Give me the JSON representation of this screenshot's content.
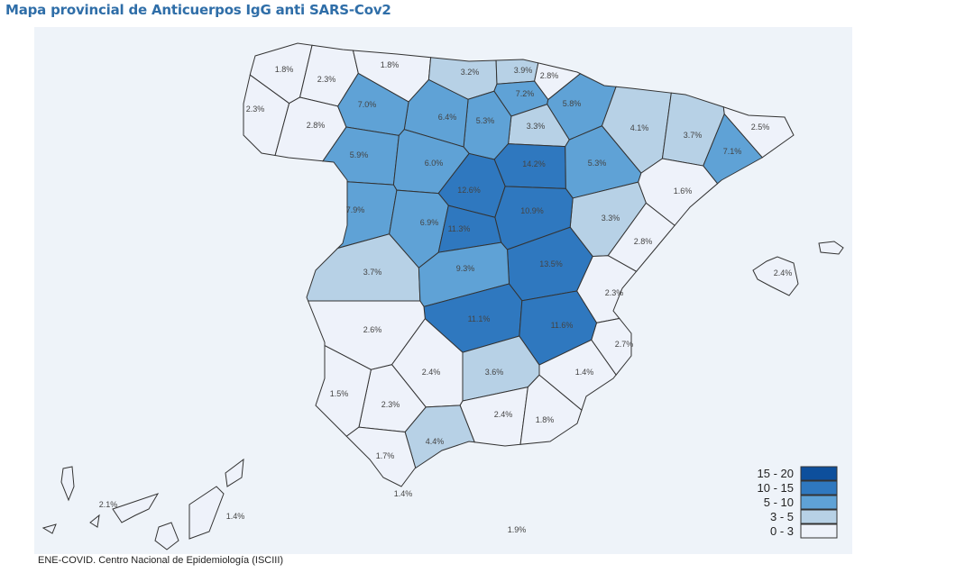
{
  "title": "Mapa provincial de Anticuerpos IgG anti SARS-Cov2",
  "source": "ENE-COVID. Centro Nacional de Epidemiología (ISCIII)",
  "legend": [
    {
      "label": "15 - 20",
      "color": "#0d4f9c"
    },
    {
      "label": "10 - 15",
      "color": "#2f78bf"
    },
    {
      "label": "5 - 10",
      "color": "#5fa2d6"
    },
    {
      "label": "3 - 5",
      "color": "#b7d1e6"
    },
    {
      "label": "0 - 3",
      "color": "#eef2fa"
    }
  ],
  "colors": {
    "background": "#eef3f9",
    "border": "#333333",
    "title": "#2f6ea8"
  },
  "provinces": [
    {
      "value": 1.8,
      "label": "1.8%"
    },
    {
      "value": 2.3,
      "label": "2.3%"
    },
    {
      "value": 2.3,
      "label": "2.3%"
    },
    {
      "value": 2.8,
      "label": "2.8%"
    },
    {
      "value": 1.8,
      "label": "1.8%"
    },
    {
      "value": 3.2,
      "label": "3.2%"
    },
    {
      "value": 3.9,
      "label": "3.9%"
    },
    {
      "value": 2.8,
      "label": "2.8%"
    },
    {
      "value": 7.2,
      "label": "7.2%"
    },
    {
      "value": 5.8,
      "label": "5.8%"
    },
    {
      "value": 3.3,
      "label": "3.3%"
    },
    {
      "value": 5.3,
      "label": "5.3%"
    },
    {
      "value": 6.4,
      "label": "6.4%"
    },
    {
      "value": 7.0,
      "label": "7.0%"
    },
    {
      "value": 5.9,
      "label": "5.9%"
    },
    {
      "value": 6.0,
      "label": "6.0%"
    },
    {
      "value": 14.2,
      "label": "14.2%"
    },
    {
      "value": 4.1,
      "label": "4.1%"
    },
    {
      "value": 3.7,
      "label": "3.7%"
    },
    {
      "value": 2.5,
      "label": "2.5%"
    },
    {
      "value": 7.1,
      "label": "7.1%"
    },
    {
      "value": 5.3,
      "label": "5.3%"
    },
    {
      "value": 1.6,
      "label": "1.6%"
    },
    {
      "value": 3.3,
      "label": "3.3%"
    },
    {
      "value": 2.8,
      "label": "2.8%"
    },
    {
      "value": 2.3,
      "label": "2.3%"
    },
    {
      "value": 2.7,
      "label": "2.7%"
    },
    {
      "value": 12.6,
      "label": "12.6%"
    },
    {
      "value": 10.9,
      "label": "10.9%"
    },
    {
      "value": 7.9,
      "label": "7.9%"
    },
    {
      "value": 6.9,
      "label": "6.9%"
    },
    {
      "value": 11.3,
      "label": "11.3%"
    },
    {
      "value": 13.5,
      "label": "13.5%"
    },
    {
      "value": 3.7,
      "label": "3.7%"
    },
    {
      "value": 9.3,
      "label": "9.3%"
    },
    {
      "value": 11.1,
      "label": "11.1%"
    },
    {
      "value": 11.6,
      "label": "11.6%"
    },
    {
      "value": 2.6,
      "label": "2.6%"
    },
    {
      "value": 1.4,
      "label": "1.4%"
    },
    {
      "value": 2.4,
      "label": "2.4%"
    },
    {
      "value": 3.6,
      "label": "3.6%"
    },
    {
      "value": 2.3,
      "label": "2.3%"
    },
    {
      "value": 1.5,
      "label": "1.5%"
    },
    {
      "value": 2.4,
      "label": "2.4%"
    },
    {
      "value": 1.8,
      "label": "1.8%"
    },
    {
      "value": 4.4,
      "label": "4.4%"
    },
    {
      "value": 1.7,
      "label": "1.7%"
    }
  ],
  "islands": [
    {
      "value": 2.4,
      "label": "2.4%"
    },
    {
      "value": 2.1,
      "label": "2.1%"
    },
    {
      "value": 1.4,
      "label": "1.4%"
    },
    {
      "value": 1.4,
      "label": "1.4%"
    },
    {
      "value": 1.9,
      "label": "1.9%"
    }
  ]
}
